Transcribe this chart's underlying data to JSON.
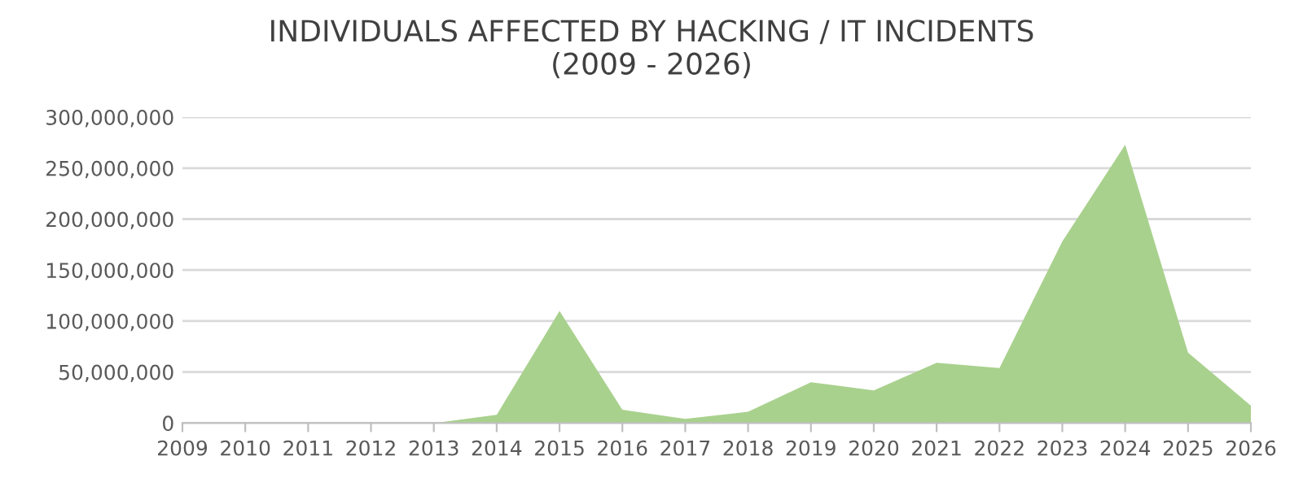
{
  "chart_data": {
    "type": "area",
    "title": "INDIVIDUALS AFFECTED BY HACKING / IT INCIDENTS\n(2009 - 2026)",
    "categories": [
      "2009",
      "2010",
      "2011",
      "2012",
      "2013",
      "2014",
      "2015",
      "2016",
      "2017",
      "2018",
      "2019",
      "2020",
      "2021",
      "2022",
      "2023",
      "2024",
      "2025",
      "2026"
    ],
    "series": [
      {
        "color": "#a9d18e",
        "values": [
          0,
          0,
          0,
          0,
          0,
          8000000,
          110000000,
          13000000,
          4000000,
          11000000,
          40000000,
          32000000,
          59000000,
          54000000,
          178000000,
          273000000,
          69000000,
          17000000
        ]
      }
    ],
    "ylim": [
      0,
      300000000
    ],
    "yticks": [
      {
        "value": 0,
        "label": "0"
      },
      {
        "value": 50000000,
        "label": "50,000,000"
      },
      {
        "value": 100000000,
        "label": "100,000,000"
      },
      {
        "value": 150000000,
        "label": "150,000,000"
      },
      {
        "value": 200000000,
        "label": "200,000,000"
      },
      {
        "value": 250000000,
        "label": "250,000,000"
      },
      {
        "value": 300000000,
        "label": "300,000,000"
      }
    ],
    "grid": "y"
  }
}
